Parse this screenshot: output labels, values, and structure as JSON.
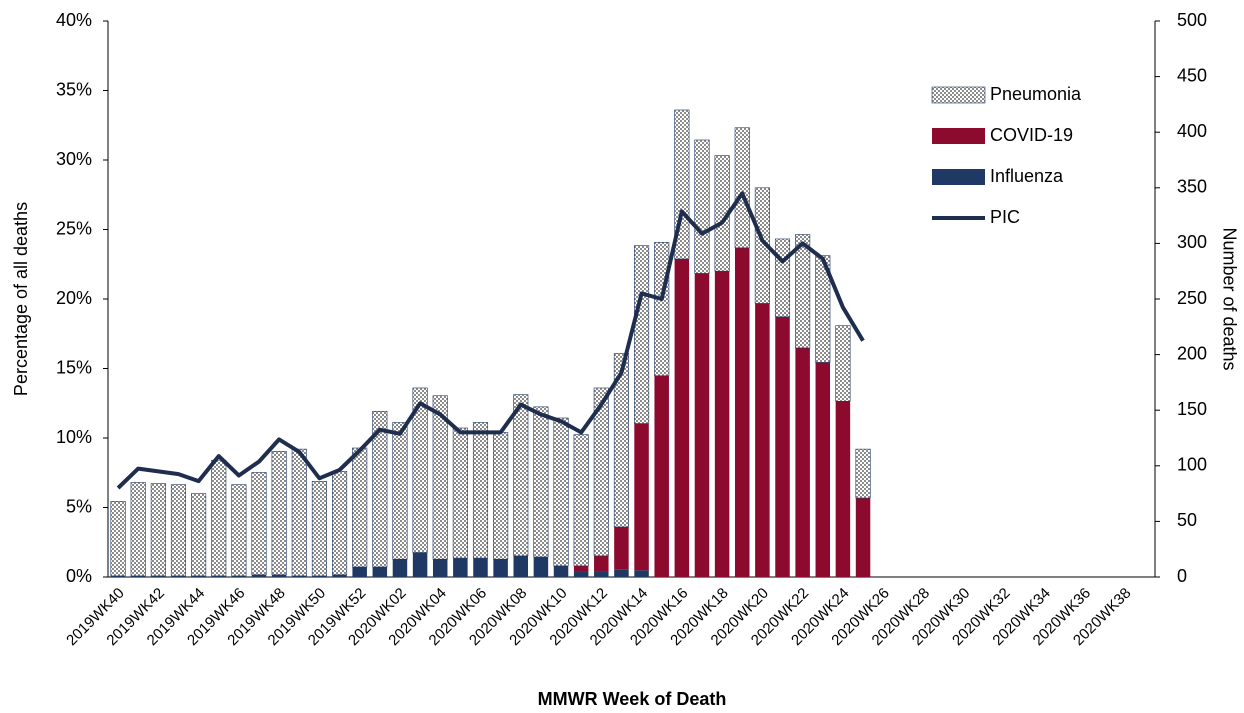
{
  "chart_data": {
    "type": "bar",
    "stacked": true,
    "xlabel": "MMWR Week of Death",
    "ylabel": "Percentage of all deaths",
    "y2label": "Number of deaths",
    "legend_position": "upper right",
    "categories": [
      "2019WK40",
      null,
      "2019WK42",
      null,
      "2019WK44",
      null,
      "2019WK46",
      null,
      "2019WK48",
      null,
      "2019WK50",
      null,
      "2019WK52",
      null,
      "2020WK02",
      null,
      "2020WK04",
      null,
      "2020WK06",
      null,
      "2020WK08",
      null,
      "2020WK10",
      null,
      "2020WK12",
      null,
      "2020WK14",
      null,
      "2020WK16",
      null,
      "2020WK18",
      null,
      "2020WK20",
      null,
      "2020WK22",
      null,
      "2020WK24",
      null,
      "2020WK26",
      null,
      "2020WK28",
      null,
      "2020WK30",
      null,
      "2020WK32",
      null,
      "2020WK34",
      null,
      "2020WK36",
      null,
      "2020WK38",
      null
    ],
    "ylim": [
      0,
      40
    ],
    "yticks": [
      {
        "value": 0,
        "label": "0%"
      },
      {
        "value": 5,
        "label": "5%"
      },
      {
        "value": 10,
        "label": "10%"
      },
      {
        "value": 15,
        "label": "15%"
      },
      {
        "value": 20,
        "label": "20%"
      },
      {
        "value": 25,
        "label": "25%"
      },
      {
        "value": 30,
        "label": "30%"
      },
      {
        "value": 35,
        "label": "35%"
      },
      {
        "value": 40,
        "label": "40%"
      }
    ],
    "y2lim": [
      0,
      500
    ],
    "y2ticks": [
      0,
      50,
      100,
      150,
      200,
      250,
      300,
      350,
      400,
      450,
      500
    ],
    "series": [
      {
        "name": "Pneumonia",
        "type": "bar",
        "axis": "y2",
        "color": "#8c8c8c",
        "pattern": "checkered",
        "values": [
          67,
          84,
          83,
          82,
          74,
          104,
          82,
          92,
          111,
          114,
          85,
          93,
          107,
          140,
          123,
          148,
          147,
          117,
          122,
          114,
          145,
          135,
          133,
          118,
          151,
          156,
          160,
          120,
          134,
          120,
          104,
          108,
          104,
          70,
          102,
          96,
          68,
          44,
          null,
          null,
          null,
          null,
          null,
          null,
          null,
          null,
          null,
          null,
          null,
          null,
          null,
          null
        ]
      },
      {
        "name": "COVID-19",
        "type": "bar",
        "axis": "y2",
        "color": "#8b0a2e",
        "values": [
          0,
          0,
          0,
          0,
          0,
          0,
          0,
          0,
          0,
          0,
          0,
          0,
          0,
          0,
          0,
          0,
          0,
          0,
          0,
          0,
          0,
          0,
          0,
          5,
          14,
          38,
          132,
          181,
          286,
          273,
          275,
          296,
          246,
          234,
          206,
          193,
          158,
          71,
          null,
          null,
          null,
          null,
          null,
          null,
          null,
          null,
          null,
          null,
          null,
          null,
          null,
          null
        ]
      },
      {
        "name": "Influenza",
        "type": "bar",
        "axis": "y2",
        "color": "#1f3864",
        "values": [
          1,
          1,
          1,
          1,
          1,
          1,
          1,
          2,
          2,
          1,
          1,
          2,
          9,
          9,
          16,
          22,
          16,
          17,
          17,
          16,
          19,
          18,
          10,
          5,
          5,
          7,
          6,
          0,
          0,
          0,
          0,
          0,
          0,
          0,
          0,
          0,
          0,
          0,
          null,
          null,
          null,
          null,
          null,
          null,
          null,
          null,
          null,
          null,
          null,
          null,
          null,
          null
        ]
      },
      {
        "name": "PIC",
        "type": "line",
        "color": "#1f2d4e",
        "values": [
          6.4,
          7.8,
          7.6,
          7.4,
          6.9,
          8.7,
          7.3,
          8.3,
          9.9,
          9.0,
          7.1,
          7.7,
          9.1,
          10.6,
          10.3,
          12.5,
          11.7,
          10.4,
          10.4,
          10.4,
          12.4,
          11.7,
          11.2,
          10.4,
          12.4,
          14.7,
          20.4,
          20.0,
          26.3,
          24.7,
          25.5,
          27.6,
          24.2,
          22.7,
          24.0,
          22.9,
          19.4,
          17.0,
          null,
          null,
          null,
          null,
          null,
          null,
          null,
          null,
          null,
          null,
          null,
          null,
          null,
          null
        ]
      }
    ]
  }
}
